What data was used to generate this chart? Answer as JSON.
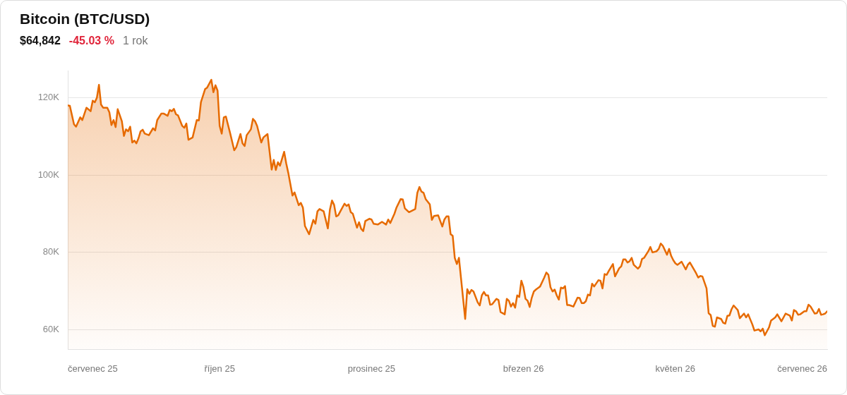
{
  "chart_data": {
    "type": "area",
    "title": "Bitcoin (BTC/USD)",
    "subtitle": "$64,842",
    "annotations": [
      "-45.03 %",
      "1 rok"
    ],
    "x": [
      "2025-07-28",
      "2025-07-29",
      "2025-07-31",
      "2025-08-01",
      "2025-08-03",
      "2025-08-04",
      "2025-08-06",
      "2025-08-08",
      "2025-08-09",
      "2025-08-10",
      "2025-08-11",
      "2025-08-12",
      "2025-08-13",
      "2025-08-14",
      "2025-08-16",
      "2025-08-17",
      "2025-08-18",
      "2025-08-19",
      "2025-08-20",
      "2025-08-21",
      "2025-08-23",
      "2025-08-24",
      "2025-08-25",
      "2025-08-26",
      "2025-08-27",
      "2025-08-28",
      "2025-08-29",
      "2025-08-30",
      "2025-08-31",
      "2025-09-01",
      "2025-09-02",
      "2025-09-03",
      "2025-09-05",
      "2025-09-07",
      "2025-09-08",
      "2025-09-09",
      "2025-09-11",
      "2025-09-12",
      "2025-09-14",
      "2025-09-15",
      "2025-09-16",
      "2025-09-17",
      "2025-09-18",
      "2025-09-19",
      "2025-09-21",
      "2025-09-22",
      "2025-09-23",
      "2025-09-24",
      "2025-09-26",
      "2025-09-28",
      "2025-09-29",
      "2025-09-30",
      "2025-10-02",
      "2025-10-03",
      "2025-10-05",
      "2025-10-06",
      "2025-10-07",
      "2025-10-08",
      "2025-10-09",
      "2025-10-10",
      "2025-10-11",
      "2025-10-12",
      "2025-10-14",
      "2025-10-16",
      "2025-10-17",
      "2025-10-19",
      "2025-10-20",
      "2025-10-21",
      "2025-10-22",
      "2025-10-24",
      "2025-10-25",
      "2025-10-26",
      "2025-10-27",
      "2025-10-29",
      "2025-10-30",
      "2025-11-01",
      "2025-11-03",
      "2025-11-04",
      "2025-11-05",
      "2025-11-06",
      "2025-11-07",
      "2025-11-09",
      "2025-11-10",
      "2025-11-11",
      "2025-11-13",
      "2025-11-14",
      "2025-11-16",
      "2025-11-17",
      "2025-11-18",
      "2025-11-19",
      "2025-11-21",
      "2025-11-23",
      "2025-11-24",
      "2025-11-25",
      "2025-11-26",
      "2025-11-28",
      "2025-11-30",
      "2025-12-01",
      "2025-12-02",
      "2025-12-03",
      "2025-12-04",
      "2025-12-05",
      "2025-12-06",
      "2025-12-08",
      "2025-12-09",
      "2025-12-10",
      "2025-12-11",
      "2025-12-12",
      "2025-12-14",
      "2025-12-15",
      "2025-12-16",
      "2025-12-17",
      "2025-12-18",
      "2025-12-20",
      "2025-12-21",
      "2025-12-22",
      "2025-12-24",
      "2025-12-26",
      "2025-12-28",
      "2025-12-29",
      "2025-12-30",
      "2026-01-01",
      "2026-01-02",
      "2026-01-04",
      "2026-01-05",
      "2026-01-06",
      "2026-01-08",
      "2026-01-11",
      "2026-01-12",
      "2026-01-13",
      "2026-01-14",
      "2026-01-15",
      "2026-01-16",
      "2026-01-18",
      "2026-01-19",
      "2026-01-20",
      "2026-01-22",
      "2026-01-24",
      "2026-01-25",
      "2026-01-26",
      "2026-01-27",
      "2026-01-28",
      "2026-01-29",
      "2026-01-30",
      "2026-01-31",
      "2026-02-01",
      "2026-02-02",
      "2026-02-04",
      "2026-02-05",
      "2026-02-06",
      "2026-02-07",
      "2026-02-08",
      "2026-02-10",
      "2026-02-11",
      "2026-02-12",
      "2026-02-13",
      "2026-02-14",
      "2026-02-15",
      "2026-02-16",
      "2026-02-17",
      "2026-02-19",
      "2026-02-20",
      "2026-02-21",
      "2026-02-23",
      "2026-02-24",
      "2026-02-25",
      "2026-02-26",
      "2026-02-27",
      "2026-02-28",
      "2026-03-01",
      "2026-03-02",
      "2026-03-03",
      "2026-03-04",
      "2026-03-05",
      "2026-03-06",
      "2026-03-07",
      "2026-03-08",
      "2026-03-09",
      "2026-03-10",
      "2026-03-12",
      "2026-03-14",
      "2026-03-15",
      "2026-03-16",
      "2026-03-17",
      "2026-03-18",
      "2026-03-19",
      "2026-03-20",
      "2026-03-21",
      "2026-03-22",
      "2026-03-23",
      "2026-03-24",
      "2026-03-25",
      "2026-03-26",
      "2026-03-28",
      "2026-03-30",
      "2026-03-31",
      "2026-04-01",
      "2026-04-02",
      "2026-04-03",
      "2026-04-04",
      "2026-04-05",
      "2026-04-06",
      "2026-04-07",
      "2026-04-09",
      "2026-04-10",
      "2026-04-11",
      "2026-04-12",
      "2026-04-13",
      "2026-04-14",
      "2026-04-16",
      "2026-04-17",
      "2026-04-19",
      "2026-04-20",
      "2026-04-21",
      "2026-04-22",
      "2026-04-23",
      "2026-04-24",
      "2026-04-25",
      "2026-04-26",
      "2026-04-28",
      "2026-04-29",
      "2026-04-30",
      "2026-05-01",
      "2026-05-03",
      "2026-05-04",
      "2026-05-05",
      "2026-05-07",
      "2026-05-08",
      "2026-05-09",
      "2026-05-10",
      "2026-05-12",
      "2026-05-13",
      "2026-05-14",
      "2026-05-15",
      "2026-05-16",
      "2026-05-17",
      "2026-05-19",
      "2026-05-21",
      "2026-05-22",
      "2026-05-23",
      "2026-05-26",
      "2026-05-27",
      "2026-05-28",
      "2026-05-29",
      "2026-05-31",
      "2026-06-01",
      "2026-06-02",
      "2026-06-03",
      "2026-06-04",
      "2026-06-05",
      "2026-06-07",
      "2026-06-08",
      "2026-06-09",
      "2026-06-10",
      "2026-06-11",
      "2026-06-12",
      "2026-06-13",
      "2026-06-15",
      "2026-06-16",
      "2026-06-18",
      "2026-06-19",
      "2026-06-20",
      "2026-06-22",
      "2026-06-23",
      "2026-06-25",
      "2026-06-26",
      "2026-06-27",
      "2026-06-28",
      "2026-06-30",
      "2026-07-01",
      "2026-07-03",
      "2026-07-04",
      "2026-07-06",
      "2026-07-08",
      "2026-07-10",
      "2026-07-11",
      "2026-07-12",
      "2026-07-13",
      "2026-07-14",
      "2026-07-15",
      "2026-07-17",
      "2026-07-18",
      "2026-07-19",
      "2026-07-20",
      "2026-07-22",
      "2026-07-23",
      "2026-07-24",
      "2026-07-25",
      "2026-07-26",
      "2026-07-27",
      "2026-07-28"
    ],
    "series": [
      {
        "color": "#e66a00",
        "values": [
          118000,
          117900,
          113100,
          112500,
          114900,
          114200,
          117400,
          116500,
          119200,
          118800,
          120000,
          123300,
          118200,
          117400,
          117400,
          116200,
          112900,
          114200,
          112400,
          117000,
          113900,
          110100,
          111800,
          111300,
          112500,
          108400,
          108900,
          108200,
          109500,
          111300,
          111700,
          110700,
          110300,
          112100,
          111500,
          114200,
          115900,
          115900,
          115300,
          116800,
          116500,
          117100,
          115700,
          115400,
          112700,
          112200,
          113300,
          109100,
          109700,
          114200,
          114100,
          118800,
          122200,
          122600,
          124600,
          121400,
          123200,
          121800,
          112700,
          110700,
          114900,
          115100,
          110900,
          106400,
          107200,
          110600,
          108200,
          107500,
          110300,
          111800,
          114500,
          113900,
          112700,
          108400,
          109700,
          110600,
          101400,
          103900,
          101300,
          103300,
          102400,
          106000,
          103000,
          100500,
          94700,
          95500,
          92200,
          92800,
          91600,
          86800,
          84700,
          88400,
          87400,
          90600,
          91200,
          90600,
          86200,
          91100,
          93400,
          92300,
          89300,
          89600,
          90600,
          92600,
          92000,
          92400,
          90400,
          90000,
          86400,
          87800,
          86100,
          85500,
          88100,
          88700,
          88500,
          87400,
          87200,
          87900,
          87200,
          88500,
          87600,
          90000,
          91600,
          93800,
          93700,
          91400,
          90400,
          91200,
          95400,
          96900,
          95700,
          95400,
          93800,
          92400,
          88400,
          89400,
          89600,
          86700,
          88500,
          89300,
          89300,
          84700,
          84300,
          78600,
          77000,
          78600,
          73300,
          62800,
          70500,
          69300,
          70300,
          69900,
          67100,
          66300,
          68900,
          69800,
          68900,
          68900,
          66500,
          66600,
          68000,
          67700,
          64600,
          64000,
          68000,
          67500,
          66000,
          66900,
          65700,
          68900,
          68500,
          72700,
          71000,
          68000,
          67500,
          65900,
          68300,
          69900,
          70400,
          71200,
          73500,
          74800,
          74200,
          71000,
          69900,
          70400,
          68900,
          67800,
          70900,
          70700,
          71300,
          66400,
          66400,
          66000,
          68300,
          68200,
          66900,
          66900,
          67400,
          69100,
          68900,
          71900,
          71200,
          72800,
          72700,
          70700,
          74400,
          74200,
          75200,
          77000,
          73800,
          75900,
          76400,
          78200,
          78200,
          77400,
          77700,
          78600,
          76800,
          75800,
          76400,
          78300,
          78600,
          80300,
          81400,
          80000,
          80300,
          80900,
          82300,
          81700,
          79400,
          80900,
          79100,
          78000,
          77200,
          76800,
          77600,
          75600,
          76800,
          77400,
          74600,
          73500,
          73900,
          73800,
          70700,
          64300,
          63800,
          61000,
          60800,
          63200,
          62800,
          61800,
          61600,
          63600,
          63700,
          65300,
          66300,
          65100,
          63000,
          64200,
          63200,
          64000,
          61400,
          59800,
          60100,
          59600,
          60300,
          58600,
          60600,
          62400,
          63200,
          64000,
          62200,
          64200,
          63700,
          62400,
          65100,
          64800,
          63900,
          64000,
          64800,
          64800,
          66500,
          66000,
          64200,
          64300,
          65400,
          63900,
          64000,
          64200,
          64800
        ]
      }
    ],
    "xlim": [
      "2025-07-28",
      "2026-07-28"
    ],
    "xticks": [
      {
        "value": "2025-07-28",
        "label": "červenec 25"
      },
      {
        "value": "2025-10-09",
        "label": "říjen 25"
      },
      {
        "value": "2025-12-21",
        "label": "prosinec 25"
      },
      {
        "value": "2026-03-04",
        "label": "březen 26"
      },
      {
        "value": "2026-05-16",
        "label": "květen 26"
      },
      {
        "value": "2026-07-28",
        "label": "červenec 26"
      }
    ],
    "ylim": [
      55000,
      127000
    ],
    "yticks": [
      {
        "value": 60000,
        "label": "60K"
      },
      {
        "value": 80000,
        "label": "80K"
      },
      {
        "value": 100000,
        "label": "100K"
      },
      {
        "value": 120000,
        "label": "120K"
      }
    ],
    "grid": "y",
    "marker": "none"
  }
}
